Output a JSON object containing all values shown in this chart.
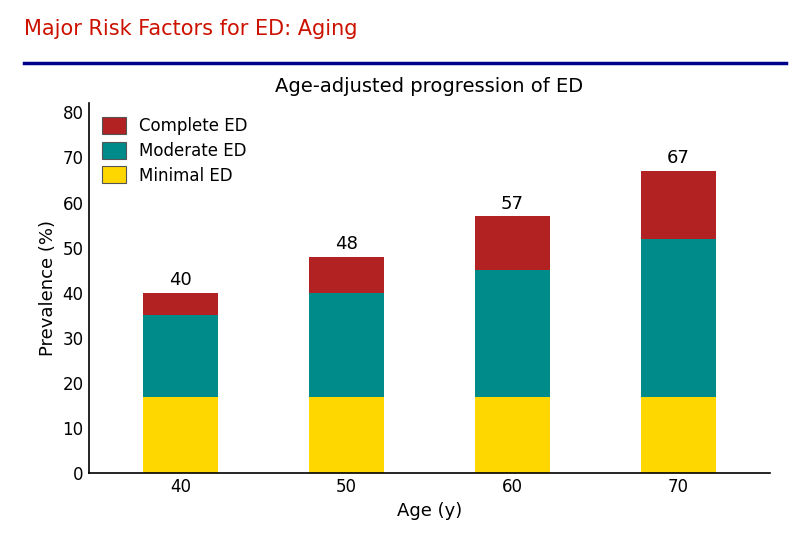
{
  "categories": [
    "40",
    "50",
    "60",
    "70"
  ],
  "minimal_ed": [
    17,
    17,
    17,
    17
  ],
  "moderate_ed": [
    18,
    23,
    28,
    35
  ],
  "complete_ed": [
    5,
    8,
    12,
    15
  ],
  "totals": [
    40,
    48,
    57,
    67
  ],
  "color_minimal": "#FFD700",
  "color_moderate": "#008B8B",
  "color_complete": "#B22222",
  "title": "Age-adjusted progression of ED",
  "xlabel": "Age (y)",
  "ylabel": "Prevalence (%)",
  "ylim": [
    0,
    82
  ],
  "yticks": [
    0,
    10,
    20,
    30,
    40,
    50,
    60,
    70,
    80
  ],
  "header_text": "Major Risk Factors for ED: Aging",
  "header_color": "#CC1100",
  "header_line_color": "#00008B",
  "legend_labels": [
    "Complete ED",
    "Moderate ED",
    "Minimal ED"
  ],
  "bar_width": 0.45,
  "background_color": "#FFFFFF",
  "title_fontsize": 14,
  "axis_label_fontsize": 13,
  "tick_fontsize": 12,
  "legend_fontsize": 12,
  "header_fontsize": 15,
  "total_label_fontsize": 13
}
